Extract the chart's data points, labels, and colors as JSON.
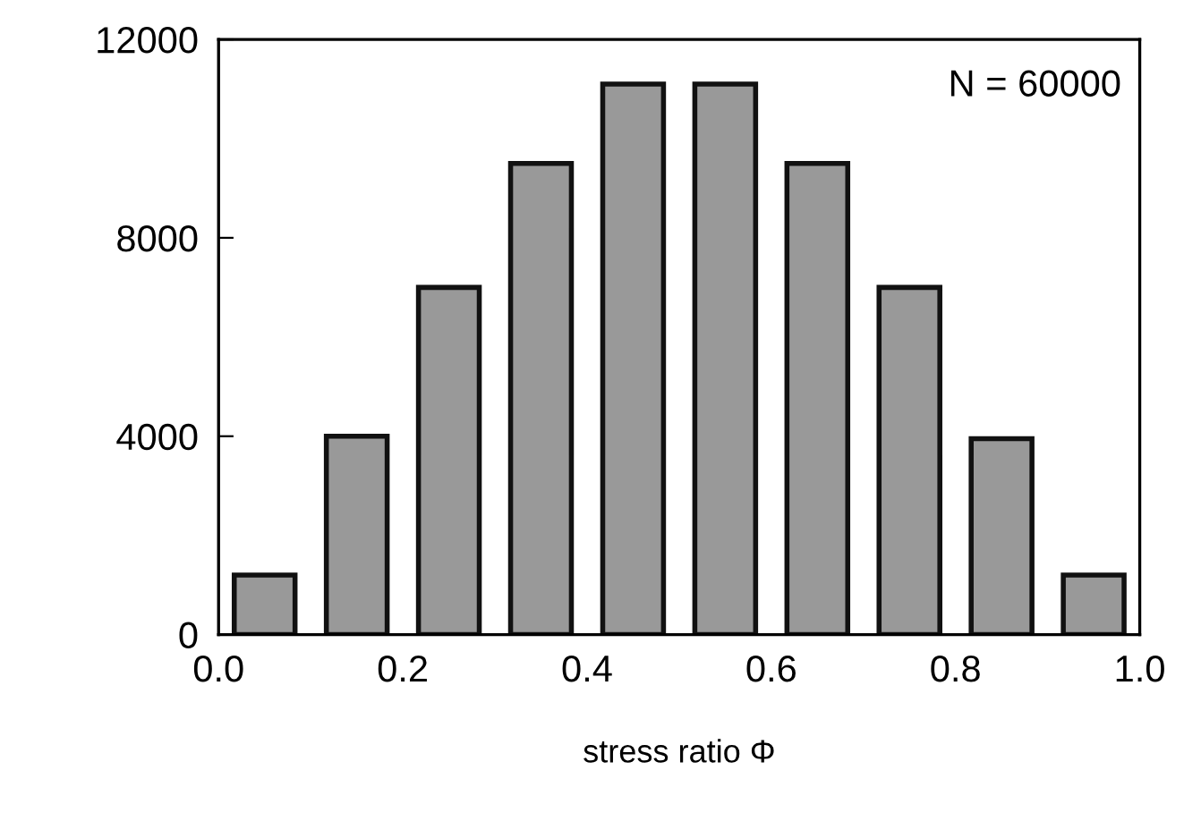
{
  "chart_data": {
    "type": "histogram",
    "xlabel": "stress ratio Φ",
    "bins": [
      0.0,
      0.1,
      0.2,
      0.3,
      0.4,
      0.5,
      0.6,
      0.7,
      0.8,
      0.9,
      1.0
    ],
    "values": [
      1200,
      4000,
      7000,
      9500,
      11100,
      11100,
      9500,
      7000,
      3950,
      1200
    ],
    "color": "#999999",
    "xlim": [
      0.0,
      1.0
    ],
    "xticks": [
      {
        "value": 0.0,
        "label": "0.0"
      },
      {
        "value": 0.2,
        "label": "0.2"
      },
      {
        "value": 0.4,
        "label": "0.4"
      },
      {
        "value": 0.6,
        "label": "0.6"
      },
      {
        "value": 0.8,
        "label": "0.8"
      },
      {
        "value": 1.0,
        "label": "1.0"
      }
    ],
    "ylim": [
      0,
      12000
    ],
    "yticks": [
      0,
      4000,
      8000,
      12000
    ],
    "annotations": [
      "N = 60000"
    ],
    "grid": false,
    "legend": false
  }
}
